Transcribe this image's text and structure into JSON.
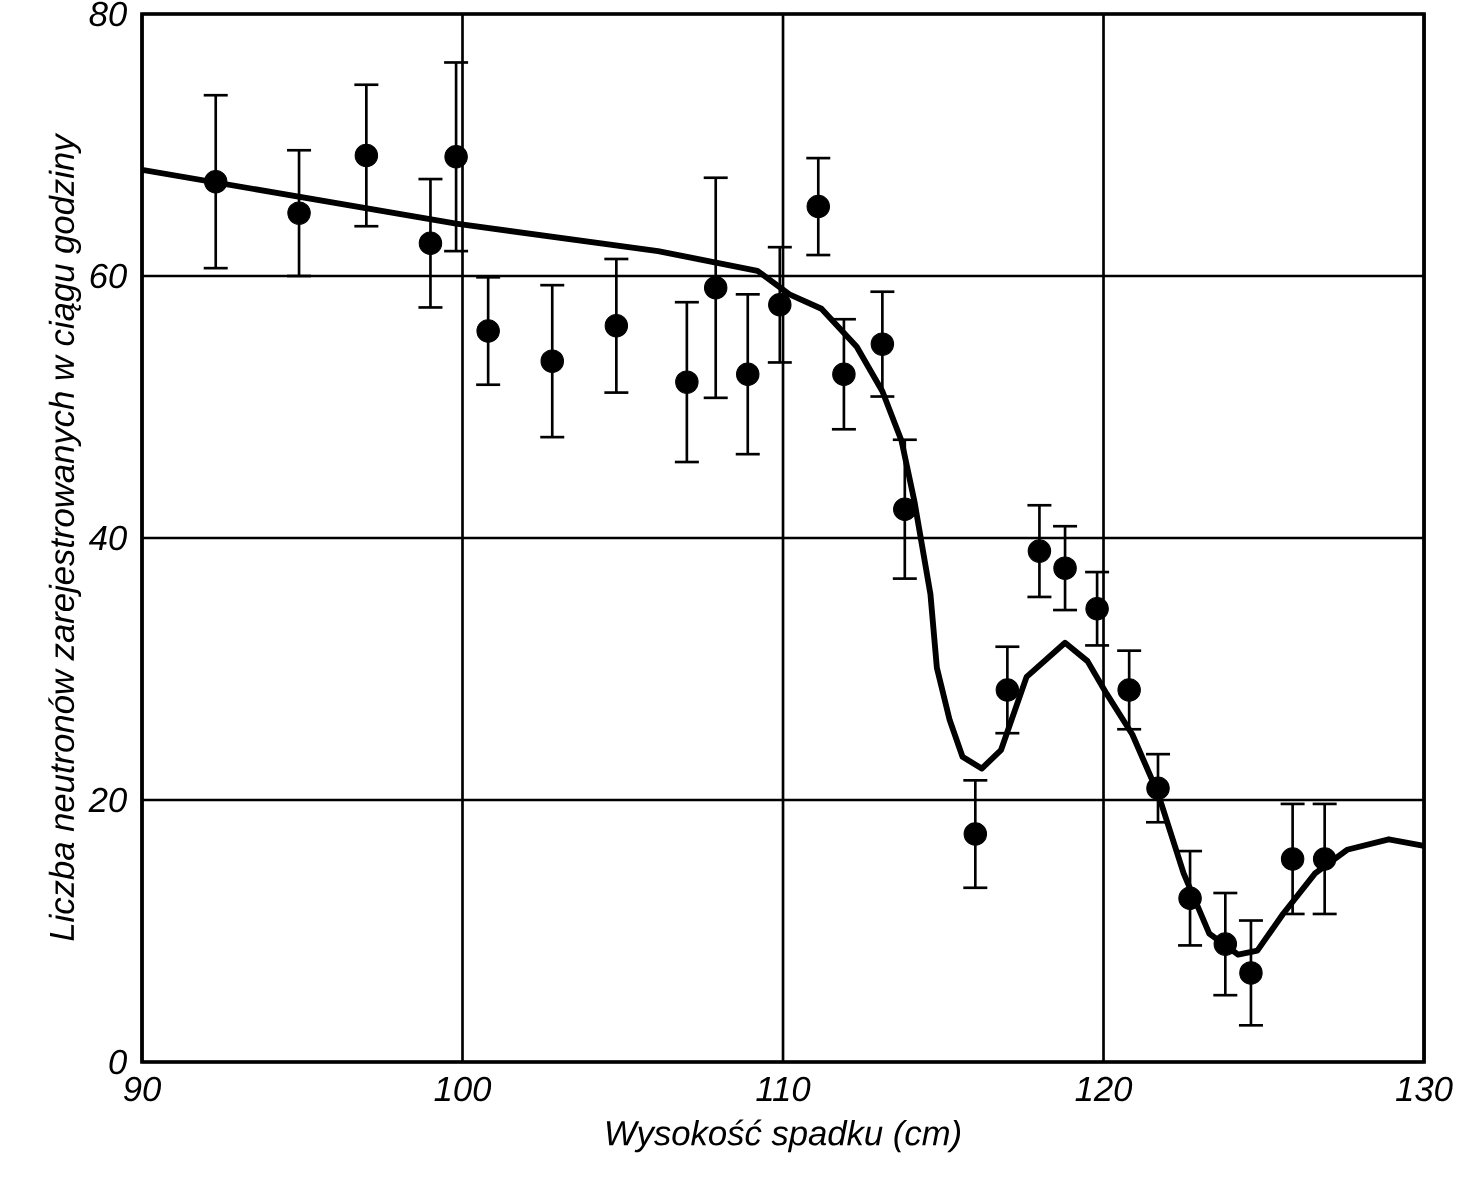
{
  "chart_data": {
    "type": "scatter",
    "xlabel": "Wysokość spadku (cm)",
    "ylabel": "Liczba neutronów zarejestrowanych w ciągu godziny",
    "xlim": [
      90,
      130
    ],
    "ylim": [
      0,
      80
    ],
    "xticks": [
      90,
      100,
      110,
      120,
      130
    ],
    "yticks": [
      0,
      20,
      40,
      60,
      80
    ],
    "grid": true,
    "series": [
      {
        "color": "#000000",
        "marker": "circle",
        "x": [
          92.3,
          94.9,
          97.0,
          99.0,
          99.8,
          100.8,
          102.8,
          104.8,
          107.0,
          107.9,
          108.9,
          109.9,
          111.1,
          111.9,
          113.1,
          113.8,
          116.0,
          117.0,
          118.0,
          118.8,
          119.8,
          120.8,
          121.7,
          122.7,
          123.8,
          124.6,
          125.9,
          126.9
        ],
        "values": [
          67.2,
          64.8,
          69.2,
          62.5,
          69.1,
          55.8,
          53.5,
          56.2,
          51.9,
          59.1,
          52.5,
          57.8,
          65.3,
          52.5,
          54.8,
          42.2,
          17.4,
          28.4,
          39.0,
          37.7,
          34.6,
          28.4,
          20.9,
          12.5,
          9.0,
          6.8,
          15.5,
          15.5
        ],
        "errors": [
          6.6,
          4.8,
          5.4,
          4.9,
          7.2,
          4.1,
          5.8,
          5.1,
          6.1,
          8.4,
          6.1,
          4.4,
          3.7,
          4.2,
          4.0,
          5.3,
          4.1,
          3.3,
          3.5,
          3.2,
          2.8,
          3.0,
          2.6,
          3.6,
          3.9,
          4.0,
          4.2,
          4.2
        ]
      },
      {
        "type": "line",
        "color": "#000000",
        "marker": "none",
        "line_style": "solid",
        "x": [
          90,
          99.8,
          106.1,
          109.2,
          110.2,
          111.2,
          112.3,
          113.1,
          113.7,
          114.1,
          114.6,
          114.8,
          115.2,
          115.6,
          116.2,
          116.8,
          117.6,
          118.8,
          119.5,
          120.1,
          120.9,
          121.7,
          122.5,
          123.3,
          124.2,
          124.8,
          125.6,
          126.6,
          127.6,
          128.9,
          130
        ],
        "values": [
          68.1,
          64.0,
          61.9,
          60.4,
          58.6,
          57.5,
          54.6,
          51.2,
          47.4,
          42.8,
          35.7,
          30.1,
          26.1,
          23.3,
          22.4,
          23.8,
          29.4,
          32.0,
          30.6,
          28.1,
          25.0,
          20.5,
          14.4,
          9.8,
          8.2,
          8.5,
          11.3,
          14.4,
          16.2,
          17.0,
          16.5
        ]
      }
    ]
  }
}
